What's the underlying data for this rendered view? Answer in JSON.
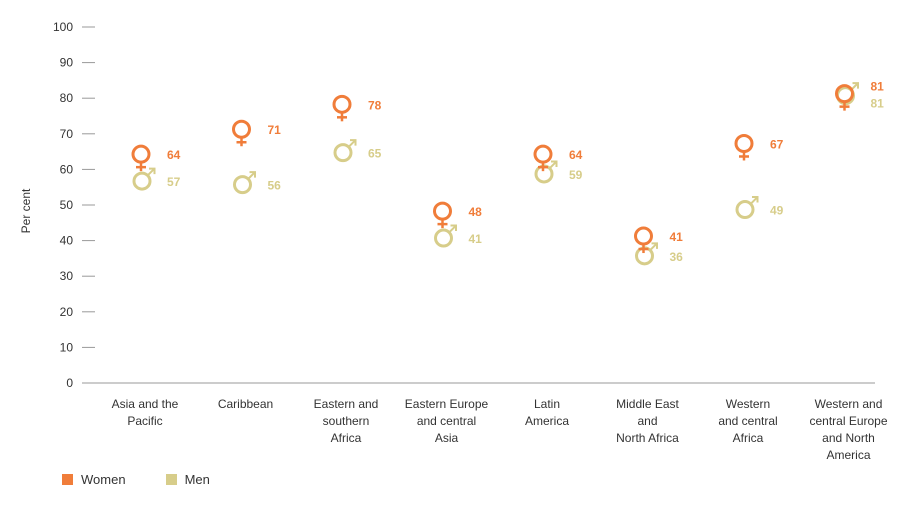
{
  "chart_data": {
    "type": "scatter",
    "ylabel": "Per cent",
    "ylim": [
      0,
      100
    ],
    "yticks": [
      0,
      10,
      20,
      30,
      40,
      50,
      60,
      70,
      80,
      90,
      100
    ],
    "categories": [
      [
        "Asia and the",
        "Pacific"
      ],
      [
        "Caribbean"
      ],
      [
        "Eastern and",
        "southern",
        "Africa"
      ],
      [
        "Eastern Europe",
        "and central",
        "Asia"
      ],
      [
        "Latin",
        "America"
      ],
      [
        "Middle East",
        "and",
        "North Africa"
      ],
      [
        "Western",
        "and central",
        "Africa"
      ],
      [
        "Western and",
        "central Europe",
        "and North",
        "America"
      ]
    ],
    "series": [
      {
        "name": "Women",
        "color": "#f07d3a",
        "icon": "female-symbol-icon",
        "values": [
          64,
          71,
          78,
          48,
          64,
          41,
          67,
          81
        ]
      },
      {
        "name": "Men",
        "color": "#d7cd8a",
        "icon": "male-symbol-icon",
        "values": [
          57,
          56,
          65,
          41,
          59,
          36,
          49,
          81
        ]
      }
    ],
    "legend_position": "bottom-left",
    "grid": false
  }
}
